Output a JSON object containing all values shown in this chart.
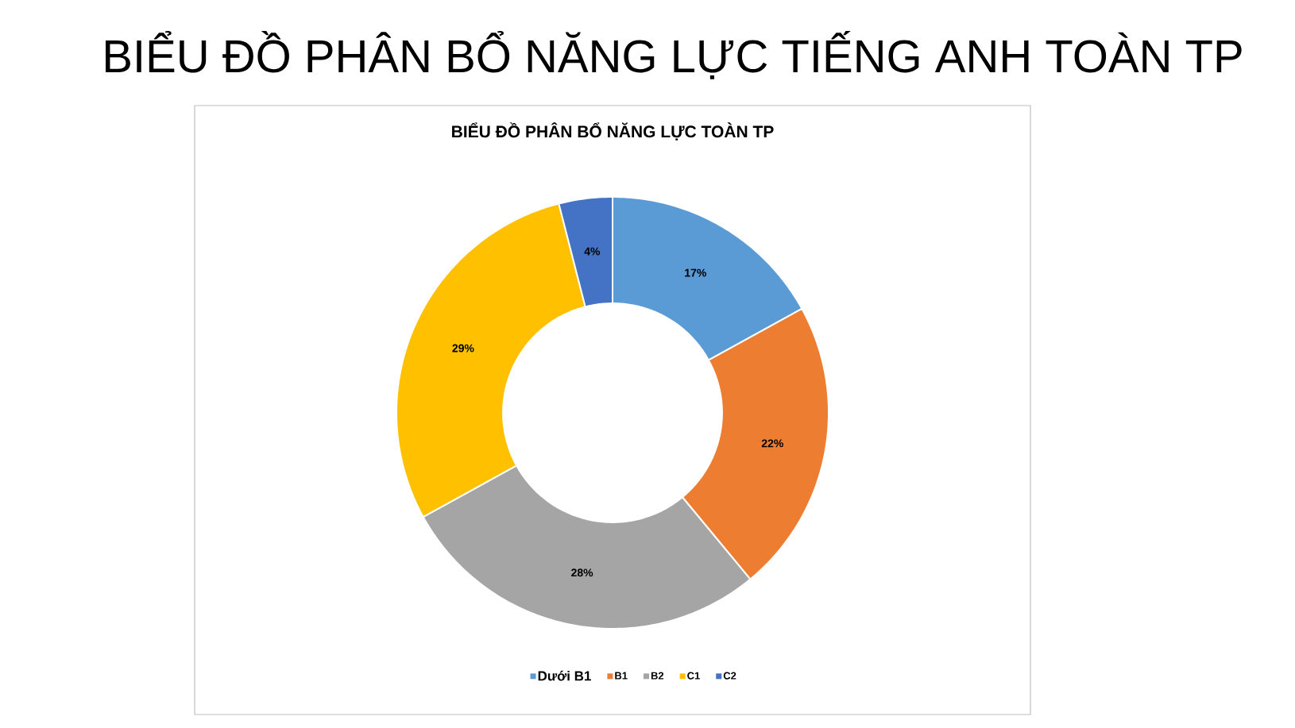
{
  "chart_data": {
    "type": "donut",
    "title": "BIỂU ĐỒ PHÂN BỔ NĂNG LỰC TIẾNG ANH TOÀN TP",
    "subtitle": "BIỂU ĐỒ PHÂN BỔ NĂNG LỰC TOÀN TP",
    "categories": [
      "Dưới B1",
      "B1",
      "B2",
      "C1",
      "C2"
    ],
    "values": [
      17,
      22,
      28,
      29,
      4
    ],
    "colors": [
      "#5b9bd5",
      "#ed7d31",
      "#a5a5a5",
      "#ffc000",
      "#4472c4"
    ],
    "value_labels": [
      "17%",
      "22%",
      "28%",
      "29%",
      "4%"
    ],
    "legend": "bottom"
  }
}
